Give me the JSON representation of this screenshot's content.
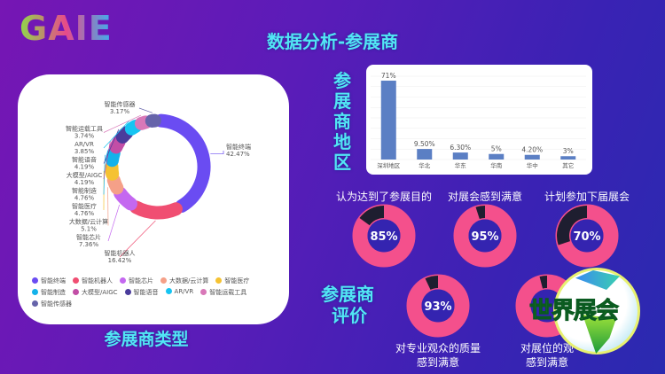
{
  "header": {
    "logo": "GAIE",
    "title": "数据分析-参展商"
  },
  "exhibitor_type": {
    "title": "参展商类型",
    "chart_data": {
      "type": "pie",
      "donut": true,
      "categories": [
        "智能终端",
        "智能机器人",
        "智能芯片",
        "大数据/云计算",
        "智能医疗",
        "智能制造",
        "大模型/AIGC",
        "智能语音",
        "AR/VR",
        "智能运载工具",
        "智能传感器"
      ],
      "values": [
        42.47,
        16.42,
        7.36,
        5.1,
        4.76,
        4.76,
        4.19,
        4.19,
        3.85,
        3.74,
        3.17
      ],
      "labels": [
        "42.47%",
        "16.42%",
        "7.36%",
        "5.1%",
        "4.76%",
        "4.76%",
        "4.19%",
        "4.19%",
        "3.85%",
        "3.74%",
        "3.17%"
      ],
      "colors": [
        "#6a4cf2",
        "#f04e72",
        "#c468f0",
        "#f5a088",
        "#f5c232",
        "#14b2ea",
        "#c24ea6",
        "#4a3c9c",
        "#16c4f2",
        "#d878b8",
        "#6664aa"
      ],
      "legend": "bottom"
    }
  },
  "region": {
    "title": "参展商地区",
    "chart_data": {
      "type": "bar",
      "categories": [
        "深圳地区",
        "华北",
        "华东",
        "华南",
        "华中",
        "其它"
      ],
      "values": [
        71,
        9.5,
        6.3,
        5,
        4.2,
        3
      ],
      "labels": [
        "71%",
        "9.50%",
        "6.30%",
        "5%",
        "4.20%",
        "3%"
      ],
      "ylim": [
        0,
        75
      ],
      "grid": true,
      "color": "#5b7fc4"
    }
  },
  "evaluation": {
    "title_line1": "参展商",
    "title_line2": "评价",
    "items": [
      {
        "label": "认为达到了参展目的",
        "value": 85,
        "text": "85%"
      },
      {
        "label": "对展会感到满意",
        "value": 95,
        "text": "95%"
      },
      {
        "label": "计划参加下届展会",
        "value": 70,
        "text": "70%"
      },
      {
        "label": "对专业观众的质量",
        "label2": "感到满意",
        "value": 93,
        "text": "93%"
      },
      {
        "label": "对展位的观",
        "label2": "感到满意"
      }
    ],
    "colors": {
      "fill": "#f4508c",
      "remainder": "#1e1e30",
      "center": "#3424b0"
    }
  },
  "watermark": {
    "text": "世界展会"
  }
}
